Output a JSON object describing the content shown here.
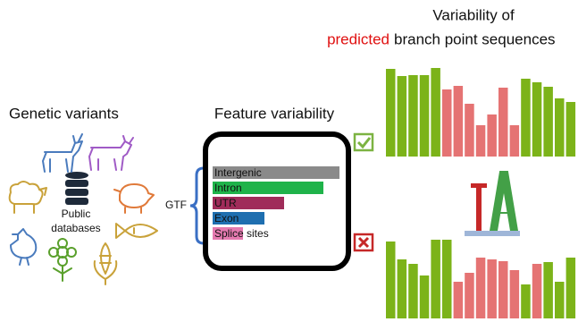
{
  "right_panel": {
    "title_line1": "Variability of",
    "title_highlight": "predicted",
    "title_rest": "branch point sequences"
  },
  "left_panel": {
    "title": "Genetic variants",
    "database_label": [
      "Public",
      "databases"
    ]
  },
  "middle_panel": {
    "title": "Feature variability",
    "gtf_label": "GTF",
    "features": [
      "Intergenic",
      "Intron",
      "UTR",
      "Exon",
      "Splice sites"
    ]
  }
}
